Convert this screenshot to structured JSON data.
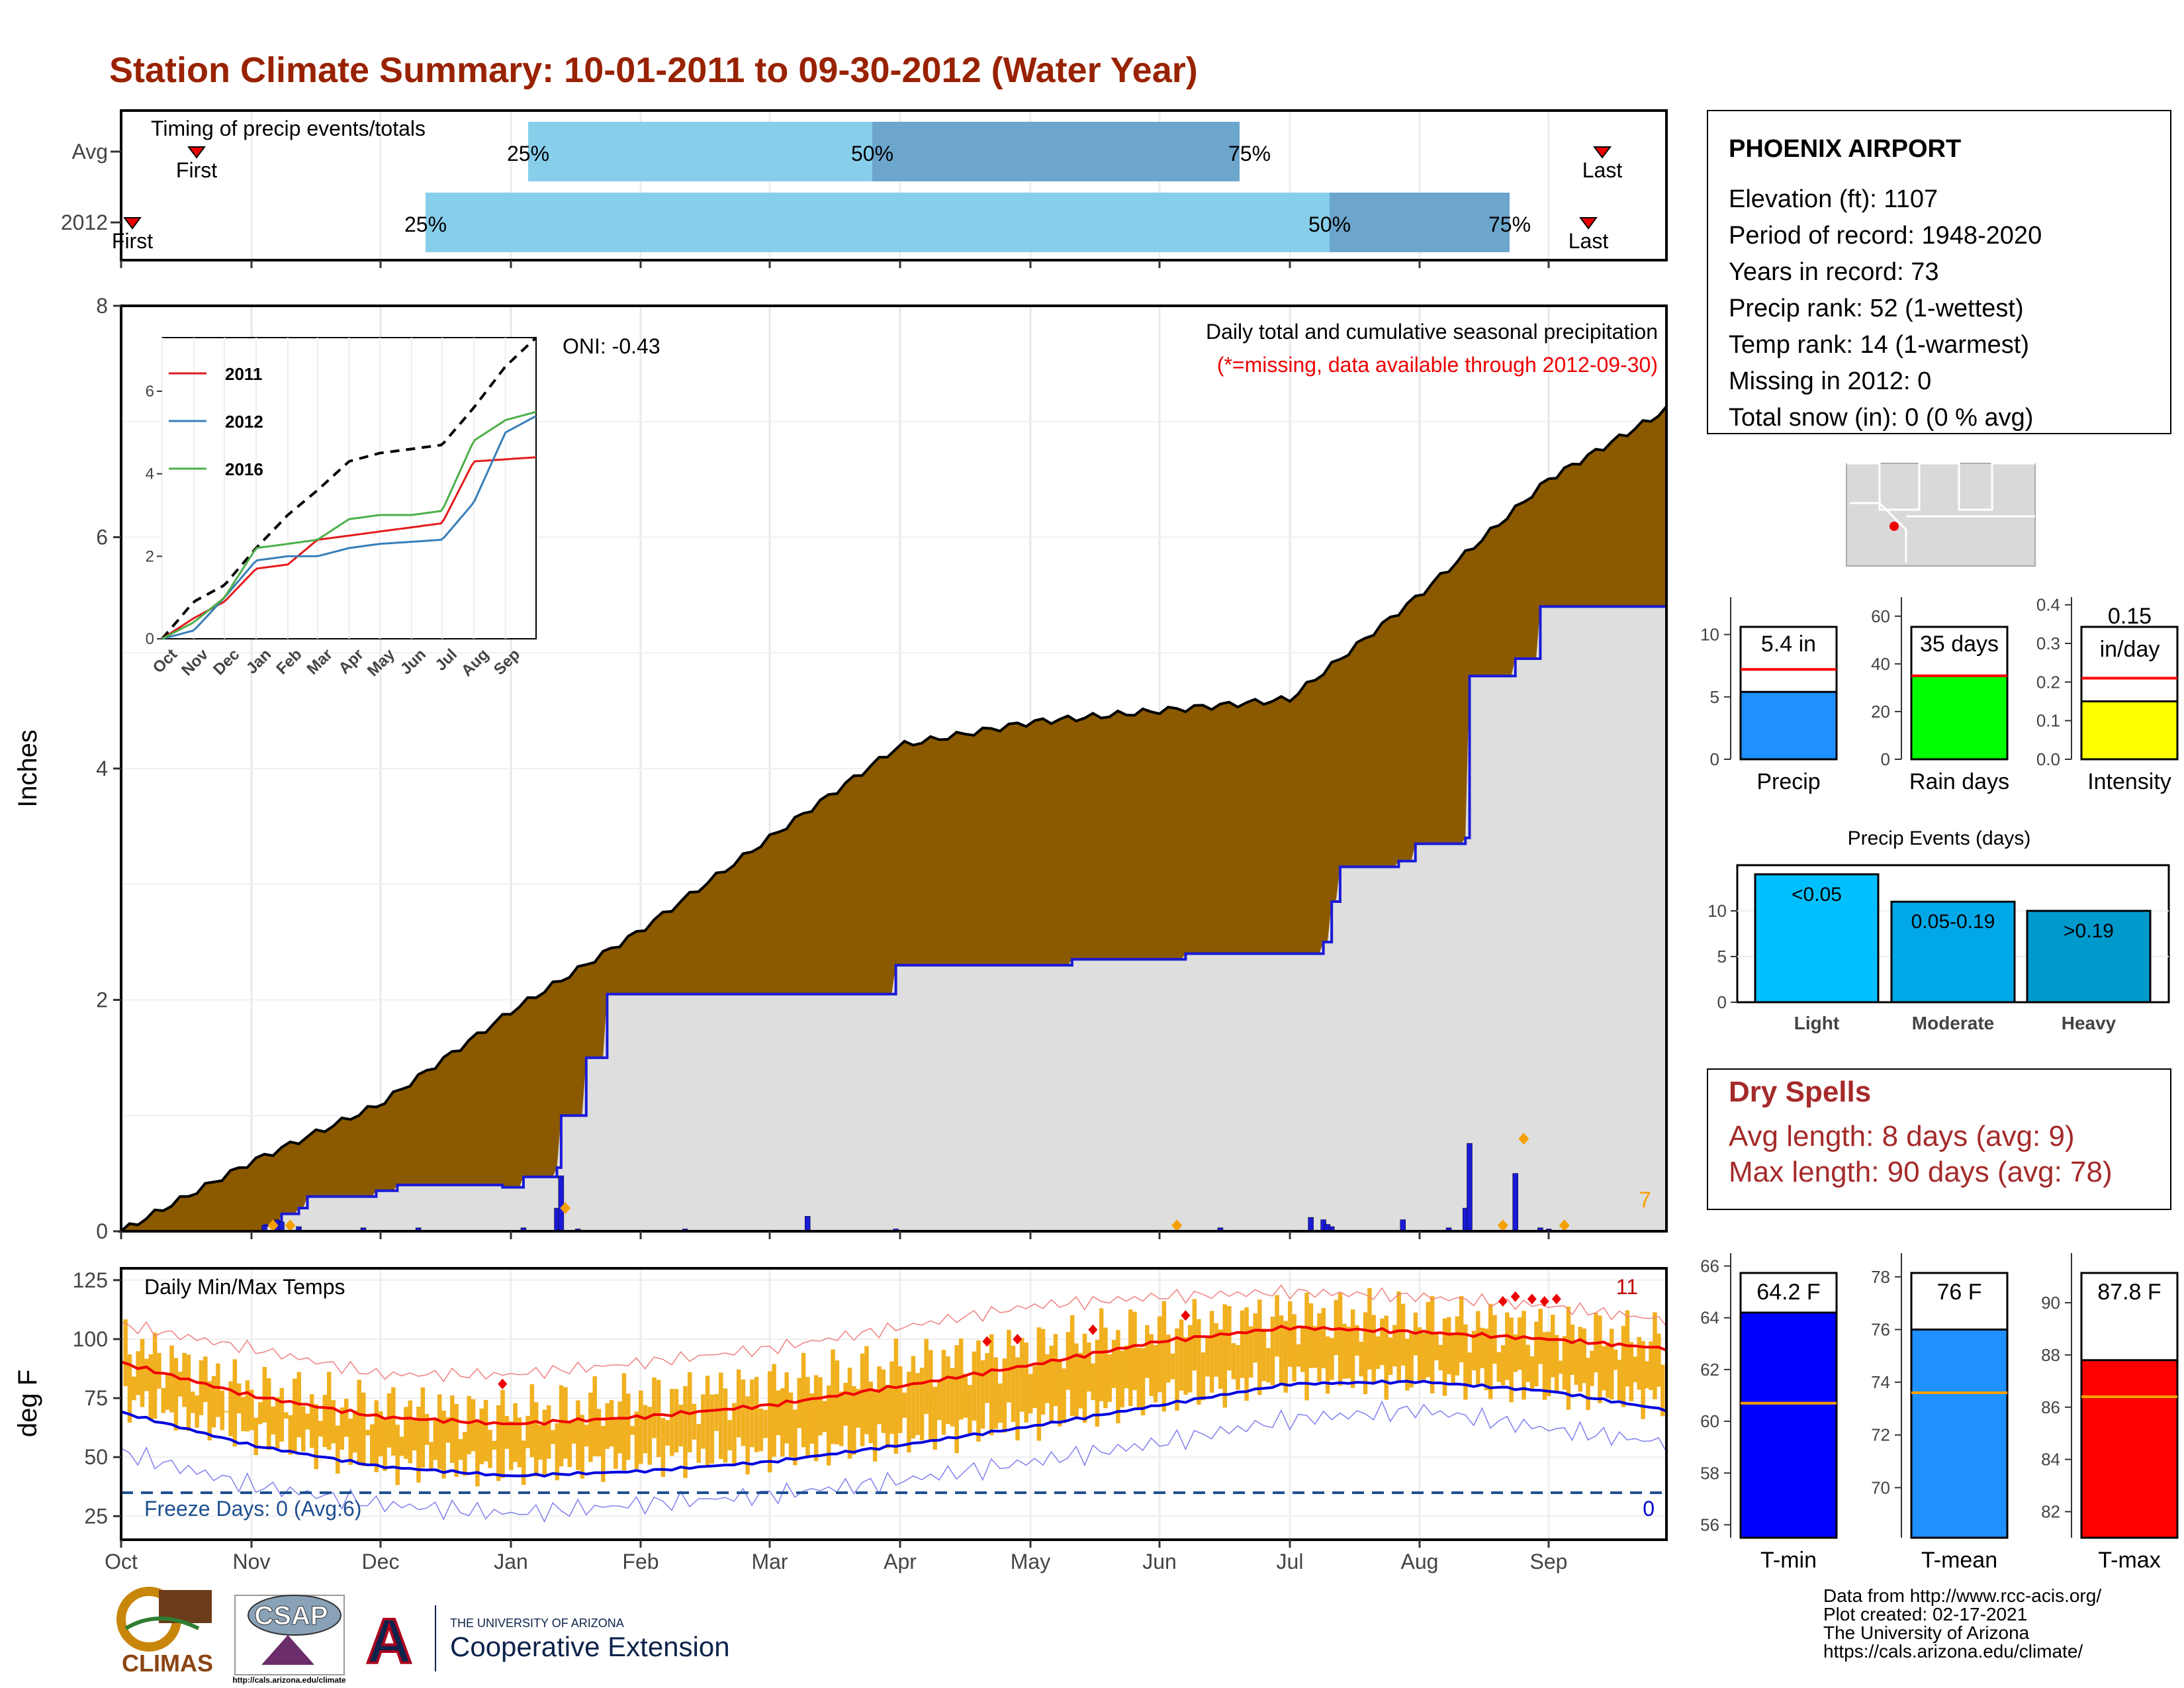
{
  "title": "Station Climate Summary: 10-01-2011 to 09-30-2012 (Water Year)",
  "timing": {
    "label": "Timing of precip events/totals",
    "rows": [
      "Avg",
      "2012"
    ],
    "avg": {
      "first": "First",
      "last": "Last",
      "p25": "25%",
      "p50": "50%",
      "p75": "75%"
    },
    "y2012": {
      "first": "First",
      "last": "Last",
      "p25": "25%",
      "p50": "50%",
      "p75": "75%"
    }
  },
  "main_chart": {
    "ylabel": "Inches",
    "yticks": [
      "0",
      "2",
      "4",
      "6",
      "8"
    ],
    "months": [
      "Oct",
      "Nov",
      "Dec",
      "Jan",
      "Feb",
      "Mar",
      "Apr",
      "May",
      "Jun",
      "Jul",
      "Aug",
      "Sep"
    ],
    "oni": "ONI: -0.43",
    "subtitle": "Daily total and cumulative seasonal precipitation",
    "missing_note": "(*=missing, data available through 2012-09-30)",
    "count_label": "7"
  },
  "inset": {
    "legend": [
      "2011",
      "2012",
      "2016"
    ],
    "colors": [
      "#e41a1c",
      "#377eb8",
      "#4daf4a"
    ],
    "yticks": [
      "0",
      "2",
      "4",
      "6"
    ],
    "months": [
      "Oct",
      "Nov",
      "Dec",
      "Jan",
      "Feb",
      "Mar",
      "Apr",
      "May",
      "Jun",
      "Jul",
      "Aug",
      "Sep"
    ]
  },
  "temp_chart": {
    "label": "Daily Min/Max Temps",
    "ylabel": "deg F",
    "yticks": [
      "25",
      "50",
      "75",
      "100",
      "125"
    ],
    "freeze": "Freeze Days: 0 (Avg:6)",
    "hot_count": "11",
    "freeze_count": "0"
  },
  "station": {
    "name": "PHOENIX AIRPORT",
    "lines": [
      "Elevation (ft): 1107",
      "Period of record: 1948-2020",
      "Years in record: 73",
      "Precip rank: 52 (1-wettest)",
      "Temp rank: 14 (1-warmest)",
      "Missing in 2012: 0",
      "Total snow (in): 0 (0 % avg)"
    ]
  },
  "bars": {
    "precip": {
      "value_label": "5.4 in",
      "name": "Precip",
      "yticks": [
        "0",
        "5",
        "10"
      ]
    },
    "raindays": {
      "value_label": "35 days",
      "name": "Rain days",
      "yticks": [
        "0",
        "20",
        "40",
        "60"
      ]
    },
    "intensity": {
      "value_label": "0.15\nin/day",
      "value_line1": "0.15",
      "value_line2": "in/day",
      "name": "Intensity",
      "yticks": [
        "0.0",
        "0.1",
        "0.2",
        "0.3",
        "0.4"
      ]
    }
  },
  "events": {
    "title": "Precip Events (days)",
    "categories": [
      "Light",
      "Moderate",
      "Heavy"
    ],
    "labels": [
      "<0.05",
      "0.05-0.19",
      ">0.19"
    ],
    "values": [
      14,
      11,
      10
    ],
    "yticks": [
      "0",
      "5",
      "10"
    ]
  },
  "dry_spells": {
    "title": "Dry Spells",
    "avg": "Avg length: 8 days (avg: 9)",
    "max": "Max length: 90 days (avg: 78)"
  },
  "temps": {
    "tmin": {
      "label": "64.2 F",
      "name": "T-min",
      "yticks": [
        "56",
        "58",
        "60",
        "62",
        "64",
        "66"
      ]
    },
    "tmean": {
      "label": "76 F",
      "name": "T-mean",
      "yticks": [
        "70",
        "72",
        "74",
        "76",
        "78"
      ]
    },
    "tmax": {
      "label": "87.8 F",
      "name": "T-max",
      "yticks": [
        "82",
        "84",
        "86",
        "88",
        "90"
      ]
    }
  },
  "footer": {
    "lines": [
      "Data from http://www.rcc-acis.org/",
      "Plot created: 02-17-2021",
      "The University of Arizona",
      "https://cals.arizona.edu/climate/"
    ],
    "climas": "CLIMAS",
    "csap": "CSAP",
    "csap_url": "http://cals.arizona.edu/climate",
    "ua_small": "THE UNIVERSITY OF ARIZONA",
    "ua_big": "Cooperative Extension"
  },
  "chart_data": {
    "type": "area",
    "title": "Daily total and cumulative seasonal precipitation",
    "ylabel": "Inches",
    "ylim": [
      0,
      8
    ],
    "x": [
      "Oct",
      "Nov",
      "Dec",
      "Jan",
      "Feb",
      "Mar",
      "Apr",
      "May",
      "Jun",
      "Jul",
      "Aug",
      "Sep",
      "end"
    ],
    "series": [
      {
        "name": "Avg",
        "values": [
          0.0,
          0.6,
          1.1,
          1.9,
          2.6,
          3.4,
          4.2,
          4.4,
          4.5,
          4.6,
          5.5,
          6.5,
          7.1
        ]
      },
      {
        "name": "2012",
        "values": [
          0.0,
          0.05,
          0.9,
          2.05,
          2.05,
          2.05,
          2.3,
          2.38,
          2.4,
          2.4,
          3.35,
          5.0,
          5.4
        ]
      }
    ],
    "temperature": {
      "ylim": [
        15,
        130
      ],
      "months": [
        "Oct",
        "Nov",
        "Dec",
        "Jan",
        "Feb",
        "Mar",
        "Apr",
        "May",
        "Jun",
        "Jul",
        "Aug",
        "Sep",
        "end"
      ],
      "avg_max": [
        90,
        76,
        67,
        64,
        67,
        72,
        80,
        89,
        99,
        105,
        103,
        100,
        96
      ],
      "avg_min": [
        69,
        55,
        46,
        42,
        44,
        48,
        55,
        63,
        72,
        81,
        82,
        78,
        70
      ],
      "rec_max": [
        106,
        96,
        85,
        85,
        90,
        96,
        105,
        114,
        118,
        120,
        118,
        114,
        108
      ],
      "rec_min": [
        52,
        38,
        30,
        26,
        30,
        34,
        40,
        48,
        56,
        66,
        70,
        62,
        56
      ],
      "obs_max": [
        98,
        78,
        70,
        68,
        74,
        80,
        88,
        96,
        104,
        110,
        108,
        104,
        98
      ],
      "obs_min": [
        75,
        60,
        48,
        46,
        50,
        52,
        58,
        66,
        76,
        84,
        84,
        80,
        75
      ]
    },
    "daily_precip": [
      [
        34,
        0.05
      ],
      [
        37,
        0.1
      ],
      [
        38,
        0.08
      ],
      [
        42,
        0.04
      ],
      [
        57,
        0.03
      ],
      [
        70,
        0.03
      ],
      [
        95,
        0.03
      ],
      [
        103,
        0.2
      ],
      [
        104,
        0.48
      ],
      [
        108,
        0.02
      ],
      [
        133,
        0.02
      ],
      [
        161,
        0.13
      ],
      [
        174,
        0.01
      ],
      [
        182,
        0.02
      ],
      [
        197,
        0.01
      ],
      [
        225,
        0.01
      ],
      [
        258,
        0.03
      ],
      [
        279,
        0.12
      ],
      [
        282,
        0.1
      ],
      [
        283,
        0.06
      ],
      [
        284,
        0.04
      ],
      [
        301,
        0.1
      ],
      [
        312,
        0.03
      ],
      [
        316,
        0.2
      ],
      [
        317,
        0.76
      ],
      [
        328,
        0.5
      ],
      [
        334,
        0.03
      ],
      [
        336,
        0.02
      ]
    ],
    "bar_panels": [
      {
        "name": "Precip",
        "value": 5.4,
        "avg": 7.2,
        "ylim": [
          0,
          13
        ]
      },
      {
        "name": "Rain days",
        "value": 35,
        "avg": 35,
        "ylim": [
          0,
          68
        ]
      },
      {
        "name": "Intensity",
        "value": 0.15,
        "avg": 0.21,
        "ylim": [
          0,
          0.42
        ]
      },
      {
        "name": "T-min",
        "value": 64.2,
        "avg": 60.7,
        "ylim": [
          55.5,
          66.5
        ]
      },
      {
        "name": "T-mean",
        "value": 76.0,
        "avg": 73.6,
        "ylim": [
          68.1,
          78.9
        ]
      },
      {
        "name": "T-max",
        "value": 87.8,
        "avg": 86.4,
        "ylim": [
          81.0,
          91.9
        ]
      }
    ]
  }
}
